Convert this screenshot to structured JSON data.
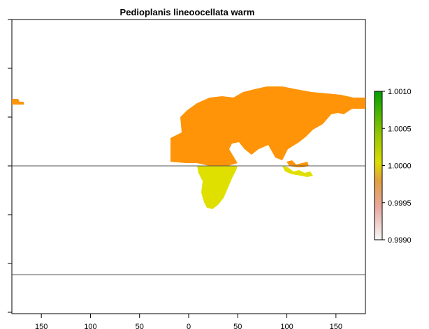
{
  "chart_data": {
    "type": "heatmap",
    "title": "Pedioplanis lineoocellata warm",
    "x_ticks": [
      "150",
      "100",
      "50",
      "0",
      "50",
      "100",
      "150"
    ],
    "x_tick_values": [
      -150,
      -100,
      -50,
      0,
      50,
      100,
      150
    ],
    "xlim": [
      -180,
      180
    ],
    "ylim": [
      -60,
      90
    ],
    "reference_lines_lat": [
      0,
      -55
    ],
    "legend": {
      "placement": "right",
      "min": 0.999,
      "max": 1.001,
      "labels": [
        "1.0010",
        "1.0005",
        "1.0000",
        "0.9995",
        "0.9990"
      ],
      "label_values": [
        1.001,
        1.0005,
        1.0,
        0.9995,
        0.999
      ],
      "colors": [
        "#f2f2f2",
        "#e8b8b0",
        "#e0a060",
        "#d8c000",
        "#9ac800",
        "#2aa000",
        "#00a000"
      ]
    },
    "regions": [
      {
        "area": "Eurasia and North Africa",
        "value": 0.9998,
        "color": "#ff9408"
      },
      {
        "area": "Alaska edge",
        "value": 0.9998,
        "color": "#ff9408"
      },
      {
        "area": "Sub-Saharan Africa",
        "value": 1.0,
        "color": "#dfe000"
      },
      {
        "area": "Indonesia and New Guinea",
        "value": 1.0,
        "color": "#dfe000"
      }
    ]
  }
}
